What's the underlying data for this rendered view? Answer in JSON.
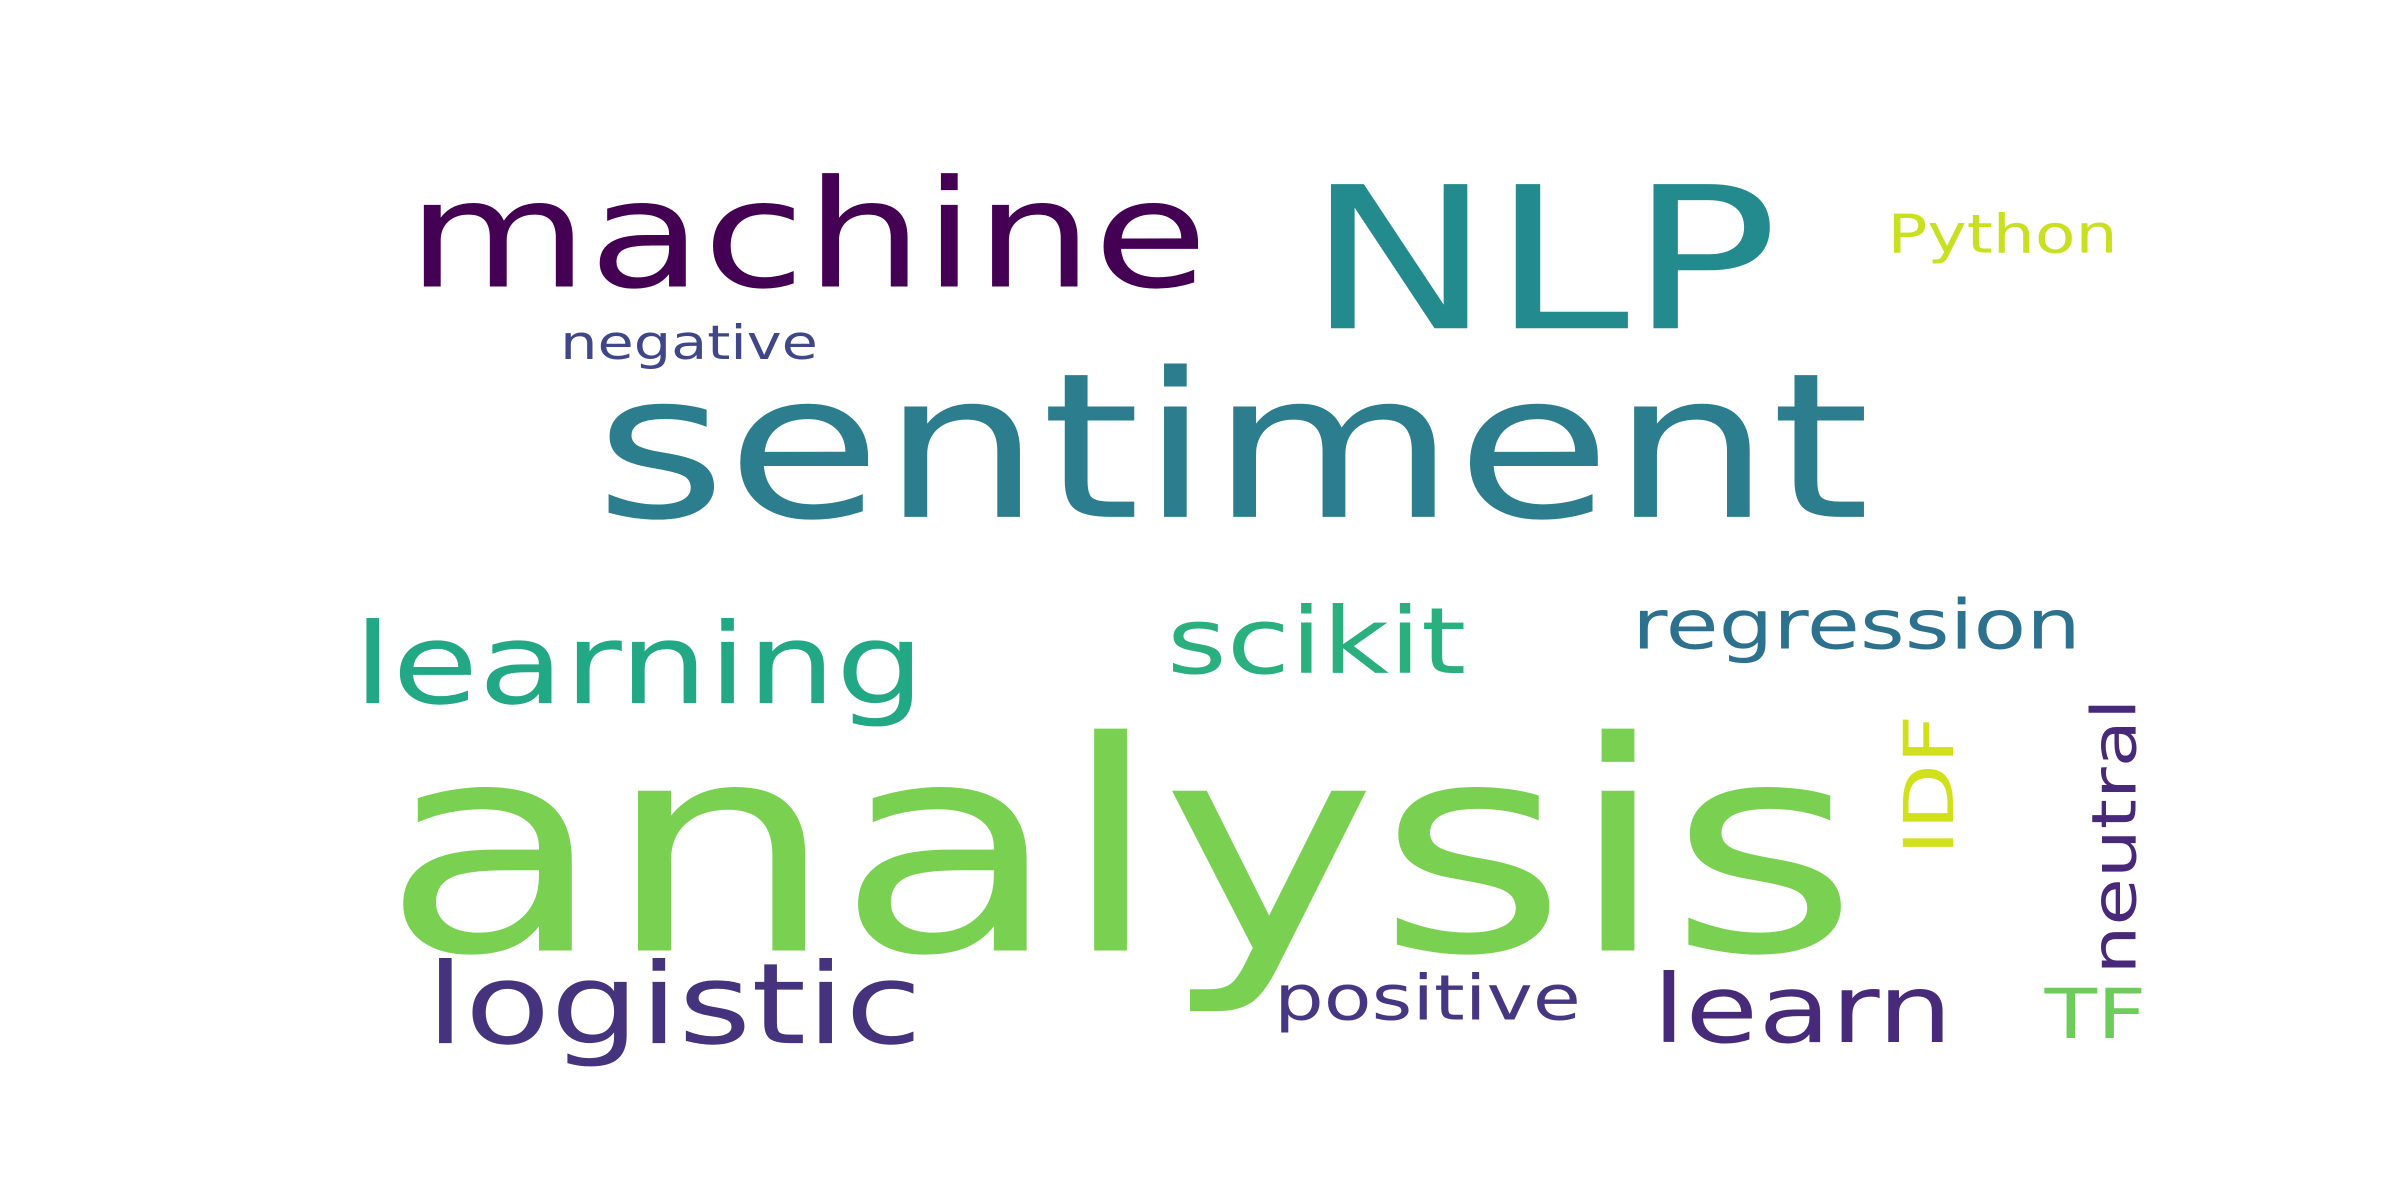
{
  "words": [
    {
      "text": "sentiment",
      "color": "#2c7e8e",
      "rotated": false
    },
    {
      "text": "analysis",
      "color": "#7ad151",
      "rotated": false
    },
    {
      "text": "NLP",
      "color": "#238a8d",
      "rotated": false
    },
    {
      "text": "machine",
      "color": "#440154",
      "rotated": false
    },
    {
      "text": "learning",
      "color": "#22a884",
      "rotated": false
    },
    {
      "text": "scikit",
      "color": "#2ab07f",
      "rotated": false
    },
    {
      "text": "regression",
      "color": "#2c718e",
      "rotated": false
    },
    {
      "text": "logistic",
      "color": "#46337e",
      "rotated": false
    },
    {
      "text": "learn",
      "color": "#472a7a",
      "rotated": false
    },
    {
      "text": "positive",
      "color": "#453781",
      "rotated": false
    },
    {
      "text": "negative",
      "color": "#3f4788",
      "rotated": false
    },
    {
      "text": "Python",
      "color": "#c8e020",
      "rotated": false
    },
    {
      "text": "IDF",
      "color": "#d0e11c",
      "rotated": true
    },
    {
      "text": "neutral",
      "color": "#482878",
      "rotated": true
    },
    {
      "text": "TF",
      "color": "#6ccd5a",
      "rotated": false
    }
  ]
}
